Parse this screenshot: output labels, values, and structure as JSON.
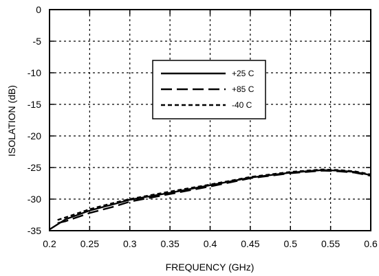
{
  "chart_data": {
    "type": "line",
    "title": "",
    "xlabel": "FREQUENCY (GHz)",
    "ylabel": "ISOLATION (dB)",
    "xlim": [
      0.2,
      0.6
    ],
    "ylim": [
      -35,
      0
    ],
    "xticks": [
      0.2,
      0.25,
      0.3,
      0.35,
      0.4,
      0.45,
      0.5,
      0.55,
      0.6
    ],
    "xtick_labels": [
      "0.2",
      "0.25",
      "0.3",
      "0.35",
      "0.4",
      "0.45",
      "0.5",
      "0.55",
      "0.6"
    ],
    "yticks": [
      0,
      -5,
      -10,
      -15,
      -20,
      -25,
      -30,
      -35
    ],
    "ytick_labels": [
      "0",
      "-5",
      "-10",
      "-15",
      "-20",
      "-25",
      "-30",
      "-35"
    ],
    "grid": true,
    "legend_position": "upper-center",
    "series": [
      {
        "name": "+25 C",
        "line_style": "solid",
        "x": [
          0.2,
          0.22,
          0.25,
          0.28,
          0.3,
          0.35,
          0.4,
          0.45,
          0.5,
          0.52,
          0.54,
          0.56,
          0.58,
          0.6
        ],
        "y": [
          -34.8,
          -33.2,
          -31.8,
          -30.8,
          -30.1,
          -29.0,
          -27.8,
          -26.6,
          -25.8,
          -25.6,
          -25.4,
          -25.5,
          -25.7,
          -26.2
        ]
      },
      {
        "name": "+85 C",
        "line_style": "long-dash",
        "x": [
          0.21,
          0.22,
          0.25,
          0.28,
          0.3,
          0.35,
          0.4,
          0.45,
          0.5,
          0.52,
          0.54,
          0.56,
          0.58,
          0.6
        ],
        "y": [
          -33.8,
          -33.5,
          -32.2,
          -31.2,
          -30.4,
          -29.2,
          -28.0,
          -26.7,
          -25.9,
          -25.7,
          -25.5,
          -25.6,
          -25.8,
          -26.3
        ]
      },
      {
        "name": "-40 C",
        "line_style": "short-dash",
        "x": [
          0.21,
          0.22,
          0.25,
          0.28,
          0.3,
          0.35,
          0.4,
          0.45,
          0.5,
          0.52,
          0.54,
          0.56,
          0.58,
          0.6
        ],
        "y": [
          -33.3,
          -32.9,
          -31.6,
          -30.6,
          -30.0,
          -28.8,
          -27.7,
          -26.5,
          -25.7,
          -25.5,
          -25.3,
          -25.4,
          -25.6,
          -26.1
        ]
      }
    ]
  },
  "colors": {
    "line": "#000000",
    "grid": "#000000",
    "background": "#ffffff"
  }
}
